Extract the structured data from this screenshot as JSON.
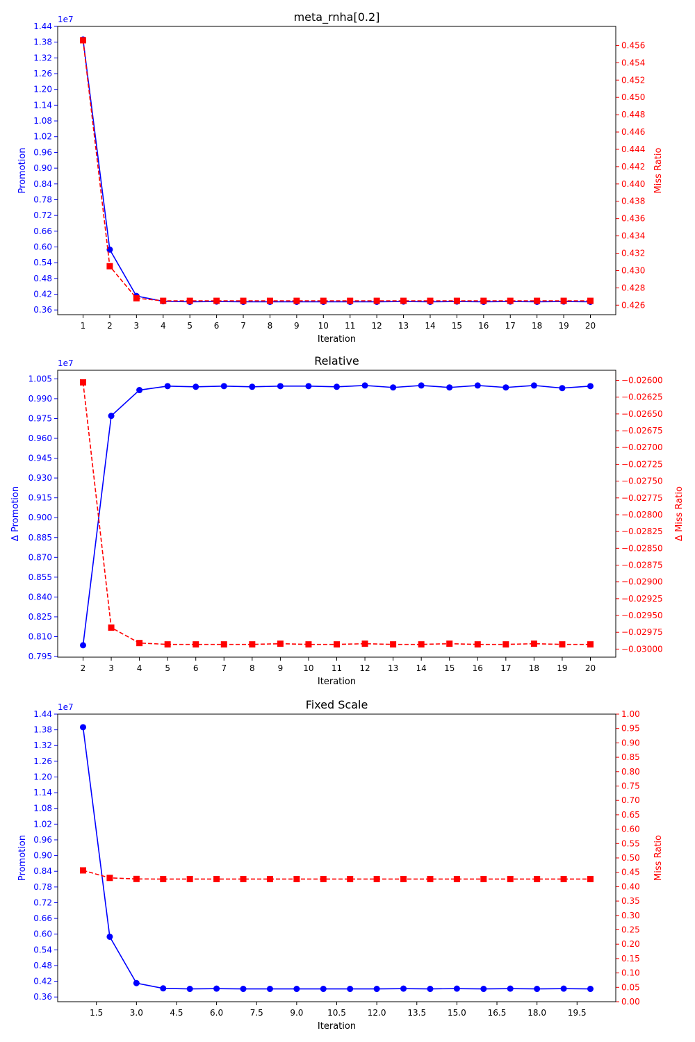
{
  "colors": {
    "left": "#0000ff",
    "right": "#ff0000",
    "axis": "#000000",
    "background": "#ffffff"
  },
  "chart_data": [
    {
      "type": "line",
      "title": "meta_rnha[0.2]",
      "xlabel": "Iteration",
      "ylabel_left": "Promotion",
      "ylabel_right": "Miss Ratio",
      "left_offset_label": "1e7",
      "x_ticks": [
        "1",
        "2",
        "3",
        "4",
        "5",
        "6",
        "7",
        "8",
        "9",
        "10",
        "11",
        "12",
        "13",
        "14",
        "15",
        "16",
        "17",
        "18",
        "19",
        "20"
      ],
      "x_tick_values": [
        1,
        2,
        3,
        4,
        5,
        6,
        7,
        8,
        9,
        10,
        11,
        12,
        13,
        14,
        15,
        16,
        17,
        18,
        19,
        20
      ],
      "xlim": [
        0.05,
        20.95
      ],
      "left_ticks": [
        "0.36",
        "0.42",
        "0.48",
        "0.54",
        "0.60",
        "0.66",
        "0.72",
        "0.78",
        "0.84",
        "0.90",
        "0.96",
        "1.02",
        "1.08",
        "1.14",
        "1.20",
        "1.26",
        "1.32",
        "1.38",
        "1.44"
      ],
      "left_tick_values": [
        0.36,
        0.42,
        0.48,
        0.54,
        0.6,
        0.66,
        0.72,
        0.78,
        0.84,
        0.9,
        0.96,
        1.02,
        1.08,
        1.14,
        1.2,
        1.26,
        1.32,
        1.38,
        1.44
      ],
      "left_ylim": [
        0.342,
        1.44
      ],
      "right_ticks": [
        "0.426",
        "0.428",
        "0.430",
        "0.432",
        "0.434",
        "0.436",
        "0.438",
        "0.440",
        "0.442",
        "0.444",
        "0.446",
        "0.448",
        "0.450",
        "0.452",
        "0.454",
        "0.456"
      ],
      "right_tick_values": [
        0.426,
        0.428,
        0.43,
        0.432,
        0.434,
        0.436,
        0.438,
        0.44,
        0.442,
        0.444,
        0.446,
        0.448,
        0.45,
        0.452,
        0.454,
        0.456
      ],
      "right_ylim": [
        0.4249,
        0.4582
      ],
      "series": [
        {
          "axis": "left",
          "color": "#0000ff",
          "marker": "circle",
          "linestyle": "solid",
          "x": [
            1,
            2,
            3,
            4,
            5,
            6,
            7,
            8,
            9,
            10,
            11,
            12,
            13,
            14,
            15,
            16,
            17,
            18,
            19,
            20
          ],
          "values": [
            1.39,
            0.59,
            0.413,
            0.393,
            0.391,
            0.392,
            0.391,
            0.391,
            0.391,
            0.391,
            0.391,
            0.391,
            0.392,
            0.391,
            0.392,
            0.391,
            0.392,
            0.391,
            0.392,
            0.391
          ]
        },
        {
          "axis": "right",
          "color": "#ff0000",
          "marker": "square",
          "linestyle": "dashed",
          "x": [
            1,
            2,
            3,
            4,
            5,
            6,
            7,
            8,
            9,
            10,
            11,
            12,
            13,
            14,
            15,
            16,
            17,
            18,
            19,
            20
          ],
          "values": [
            0.4566,
            0.4305,
            0.4268,
            0.4265,
            0.4265,
            0.4265,
            0.4265,
            0.4265,
            0.4265,
            0.4265,
            0.4265,
            0.4265,
            0.4265,
            0.4265,
            0.4265,
            0.4265,
            0.4265,
            0.4265,
            0.4265,
            0.4265
          ]
        }
      ]
    },
    {
      "type": "line",
      "title": "Relative",
      "xlabel": "Iteration",
      "ylabel_left": "Δ Promotion",
      "ylabel_right": "Δ Miss Ratio",
      "left_offset_label": "1e7",
      "x_ticks": [
        "2",
        "3",
        "4",
        "5",
        "6",
        "7",
        "8",
        "9",
        "10",
        "11",
        "12",
        "13",
        "14",
        "15",
        "16",
        "17",
        "18",
        "19",
        "20"
      ],
      "x_tick_values": [
        2,
        3,
        4,
        5,
        6,
        7,
        8,
        9,
        10,
        11,
        12,
        13,
        14,
        15,
        16,
        17,
        18,
        19,
        20
      ],
      "xlim": [
        1.1,
        20.9
      ],
      "left_ticks": [
        "0.795",
        "0.810",
        "0.825",
        "0.840",
        "0.855",
        "0.870",
        "0.885",
        "0.900",
        "0.915",
        "0.930",
        "0.945",
        "0.960",
        "0.975",
        "0.990",
        "1.005"
      ],
      "left_tick_values": [
        0.795,
        0.81,
        0.825,
        0.84,
        0.855,
        0.87,
        0.885,
        0.9,
        0.915,
        0.93,
        0.945,
        0.96,
        0.975,
        0.99,
        1.005
      ],
      "left_ylim": [
        0.7945,
        1.0115
      ],
      "right_ticks": [
        "−0.03000",
        "−0.02975",
        "−0.02950",
        "−0.02925",
        "−0.02900",
        "−0.02875",
        "−0.02850",
        "−0.02825",
        "−0.02800",
        "−0.02775",
        "−0.02750",
        "−0.02725",
        "−0.02700",
        "−0.02675",
        "−0.02650",
        "−0.02625",
        "−0.02600"
      ],
      "right_tick_values": [
        -0.03,
        -0.02975,
        -0.0295,
        -0.02925,
        -0.029,
        -0.02875,
        -0.0285,
        -0.02825,
        -0.028,
        -0.02775,
        -0.0275,
        -0.02725,
        -0.027,
        -0.02675,
        -0.0265,
        -0.02625,
        -0.026
      ],
      "right_ylim": [
        -0.03012,
        -0.02585
      ],
      "series": [
        {
          "axis": "left",
          "color": "#0000ff",
          "marker": "circle",
          "linestyle": "solid",
          "x": [
            2,
            3,
            4,
            5,
            6,
            7,
            8,
            9,
            10,
            11,
            12,
            13,
            14,
            15,
            16,
            17,
            18,
            19,
            20
          ],
          "values": [
            0.8035,
            0.977,
            0.9965,
            0.9995,
            0.999,
            0.9995,
            0.999,
            0.9995,
            0.9995,
            0.999,
            1.0,
            0.9985,
            1.0,
            0.9985,
            1.0,
            0.9985,
            1.0,
            0.998,
            0.9995
          ]
        },
        {
          "axis": "right",
          "color": "#ff0000",
          "marker": "square",
          "linestyle": "dashed",
          "x": [
            2,
            3,
            4,
            5,
            6,
            7,
            8,
            9,
            10,
            11,
            12,
            13,
            14,
            15,
            16,
            17,
            18,
            19,
            20
          ],
          "values": [
            -0.02603,
            -0.02968,
            -0.02991,
            -0.02993,
            -0.02993,
            -0.02993,
            -0.02993,
            -0.02992,
            -0.02993,
            -0.02993,
            -0.02992,
            -0.02993,
            -0.02993,
            -0.02992,
            -0.02993,
            -0.02993,
            -0.02992,
            -0.02993,
            -0.02993
          ]
        }
      ]
    },
    {
      "type": "line",
      "title": "Fixed Scale",
      "xlabel": "Iteration",
      "ylabel_left": "Promotion",
      "ylabel_right": "Miss Ratio",
      "left_offset_label": "1e7",
      "x_ticks": [
        "1.5",
        "3.0",
        "4.5",
        "6.0",
        "7.5",
        "9.0",
        "10.5",
        "12.0",
        "13.5",
        "15.0",
        "16.5",
        "18.0",
        "19.5"
      ],
      "x_tick_values": [
        1.5,
        3.0,
        4.5,
        6.0,
        7.5,
        9.0,
        10.5,
        12.0,
        13.5,
        15.0,
        16.5,
        18.0,
        19.5
      ],
      "xlim": [
        0.05,
        20.95
      ],
      "left_ticks": [
        "0.36",
        "0.42",
        "0.48",
        "0.54",
        "0.60",
        "0.66",
        "0.72",
        "0.78",
        "0.84",
        "0.90",
        "0.96",
        "1.02",
        "1.08",
        "1.14",
        "1.20",
        "1.26",
        "1.32",
        "1.38",
        "1.44"
      ],
      "left_tick_values": [
        0.36,
        0.42,
        0.48,
        0.54,
        0.6,
        0.66,
        0.72,
        0.78,
        0.84,
        0.9,
        0.96,
        1.02,
        1.08,
        1.14,
        1.2,
        1.26,
        1.32,
        1.38,
        1.44
      ],
      "left_ylim": [
        0.342,
        1.44
      ],
      "right_ticks": [
        "0.00",
        "0.05",
        "0.10",
        "0.15",
        "0.20",
        "0.25",
        "0.30",
        "0.35",
        "0.40",
        "0.45",
        "0.50",
        "0.55",
        "0.60",
        "0.65",
        "0.70",
        "0.75",
        "0.80",
        "0.85",
        "0.90",
        "0.95",
        "1.00"
      ],
      "right_tick_values": [
        0,
        0.05,
        0.1,
        0.15,
        0.2,
        0.25,
        0.3,
        0.35,
        0.4,
        0.45,
        0.5,
        0.55,
        0.6,
        0.65,
        0.7,
        0.75,
        0.8,
        0.85,
        0.9,
        0.95,
        1.0
      ],
      "right_ylim": [
        0,
        1
      ],
      "series": [
        {
          "axis": "left",
          "color": "#0000ff",
          "marker": "circle",
          "linestyle": "solid",
          "x": [
            1,
            2,
            3,
            4,
            5,
            6,
            7,
            8,
            9,
            10,
            11,
            12,
            13,
            14,
            15,
            16,
            17,
            18,
            19,
            20
          ],
          "values": [
            1.39,
            0.59,
            0.413,
            0.393,
            0.391,
            0.392,
            0.391,
            0.391,
            0.391,
            0.391,
            0.391,
            0.391,
            0.392,
            0.391,
            0.392,
            0.391,
            0.392,
            0.391,
            0.392,
            0.391
          ]
        },
        {
          "axis": "right",
          "color": "#ff0000",
          "marker": "square",
          "linestyle": "dashed",
          "x": [
            1,
            2,
            3,
            4,
            5,
            6,
            7,
            8,
            9,
            10,
            11,
            12,
            13,
            14,
            15,
            16,
            17,
            18,
            19,
            20
          ],
          "values": [
            0.4566,
            0.4305,
            0.4268,
            0.4265,
            0.4265,
            0.4265,
            0.4265,
            0.4265,
            0.4265,
            0.4265,
            0.4265,
            0.4265,
            0.4265,
            0.4265,
            0.4265,
            0.4265,
            0.4265,
            0.4265,
            0.4265,
            0.4265
          ]
        }
      ]
    }
  ]
}
